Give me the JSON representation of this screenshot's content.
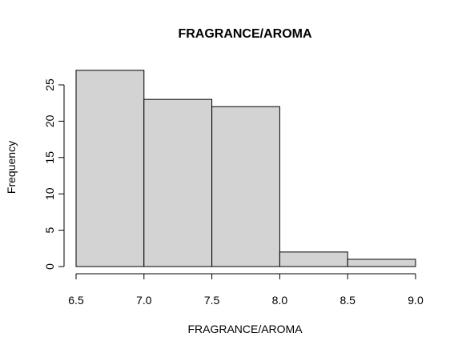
{
  "chart_data": {
    "type": "bar",
    "title": "FRAGRANCE/AROMA",
    "xlabel": "FRAGRANCE/AROMA",
    "ylabel": "Frequency",
    "bins": [
      {
        "from": 6.5,
        "to": 7.0,
        "count": 27
      },
      {
        "from": 7.0,
        "to": 7.5,
        "count": 23
      },
      {
        "from": 7.5,
        "to": 8.0,
        "count": 22
      },
      {
        "from": 8.0,
        "to": 8.5,
        "count": 2
      },
      {
        "from": 8.5,
        "to": 9.0,
        "count": 1
      }
    ],
    "xlim": [
      6.5,
      9.0
    ],
    "ylim": [
      0,
      28
    ],
    "x_ticks": [
      6.5,
      7.0,
      7.5,
      8.0,
      8.5,
      9.0
    ],
    "x_tick_labels": [
      "6.5",
      "7.0",
      "7.5",
      "8.0",
      "8.5",
      "9.0"
    ],
    "y_ticks": [
      0,
      5,
      10,
      15,
      20,
      25
    ],
    "y_tick_labels": [
      "0",
      "5",
      "10",
      "15",
      "20",
      "25"
    ],
    "grid": false,
    "legend": "none",
    "bar_color": "#d3d3d3"
  }
}
